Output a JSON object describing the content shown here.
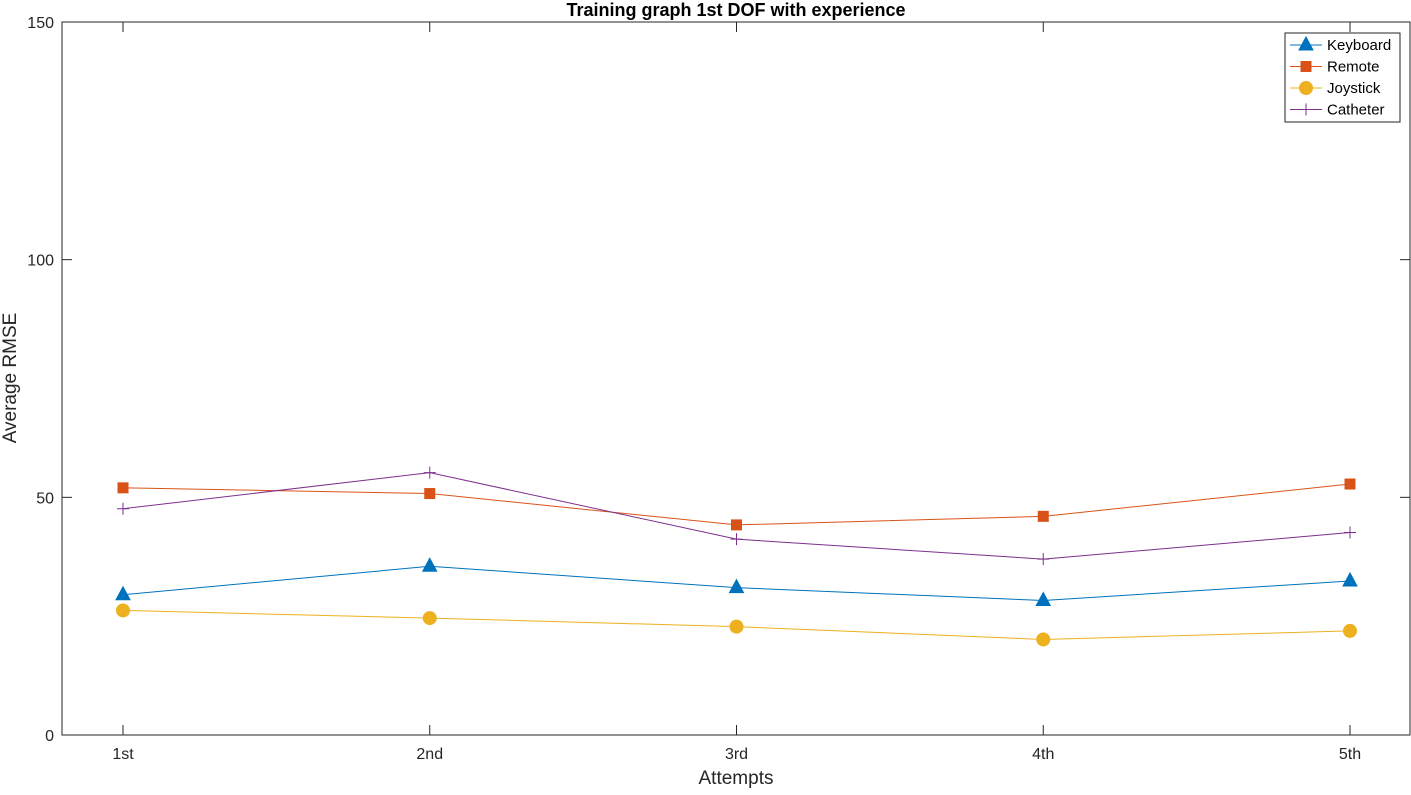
{
  "chart_data": {
    "type": "line",
    "title": "Training graph 1st DOF with experience",
    "xlabel": "Attempts",
    "ylabel": "Average RMSE",
    "categories": [
      "1st",
      "2nd",
      "3rd",
      "4th",
      "5th"
    ],
    "ylim": [
      0,
      150
    ],
    "yticks": [
      0,
      50,
      100,
      150
    ],
    "grid": false,
    "legend_position": "top-right",
    "series": [
      {
        "name": "Keyboard",
        "marker": "triangle",
        "color": "#0072BD",
        "values": [
          29.5,
          35.5,
          31,
          28.3,
          32.4
        ]
      },
      {
        "name": "Remote",
        "marker": "square",
        "color": "#D95319",
        "values": [
          52,
          50.8,
          44.2,
          46,
          52.8
        ]
      },
      {
        "name": "Joystick",
        "marker": "circle",
        "color": "#EDB120",
        "values": [
          26.2,
          24.6,
          22.8,
          20.1,
          21.9
        ]
      },
      {
        "name": "Catheter",
        "marker": "plus",
        "color": "#7E2F8E",
        "values": [
          47.6,
          55.2,
          41.2,
          37,
          42.6
        ]
      }
    ]
  }
}
